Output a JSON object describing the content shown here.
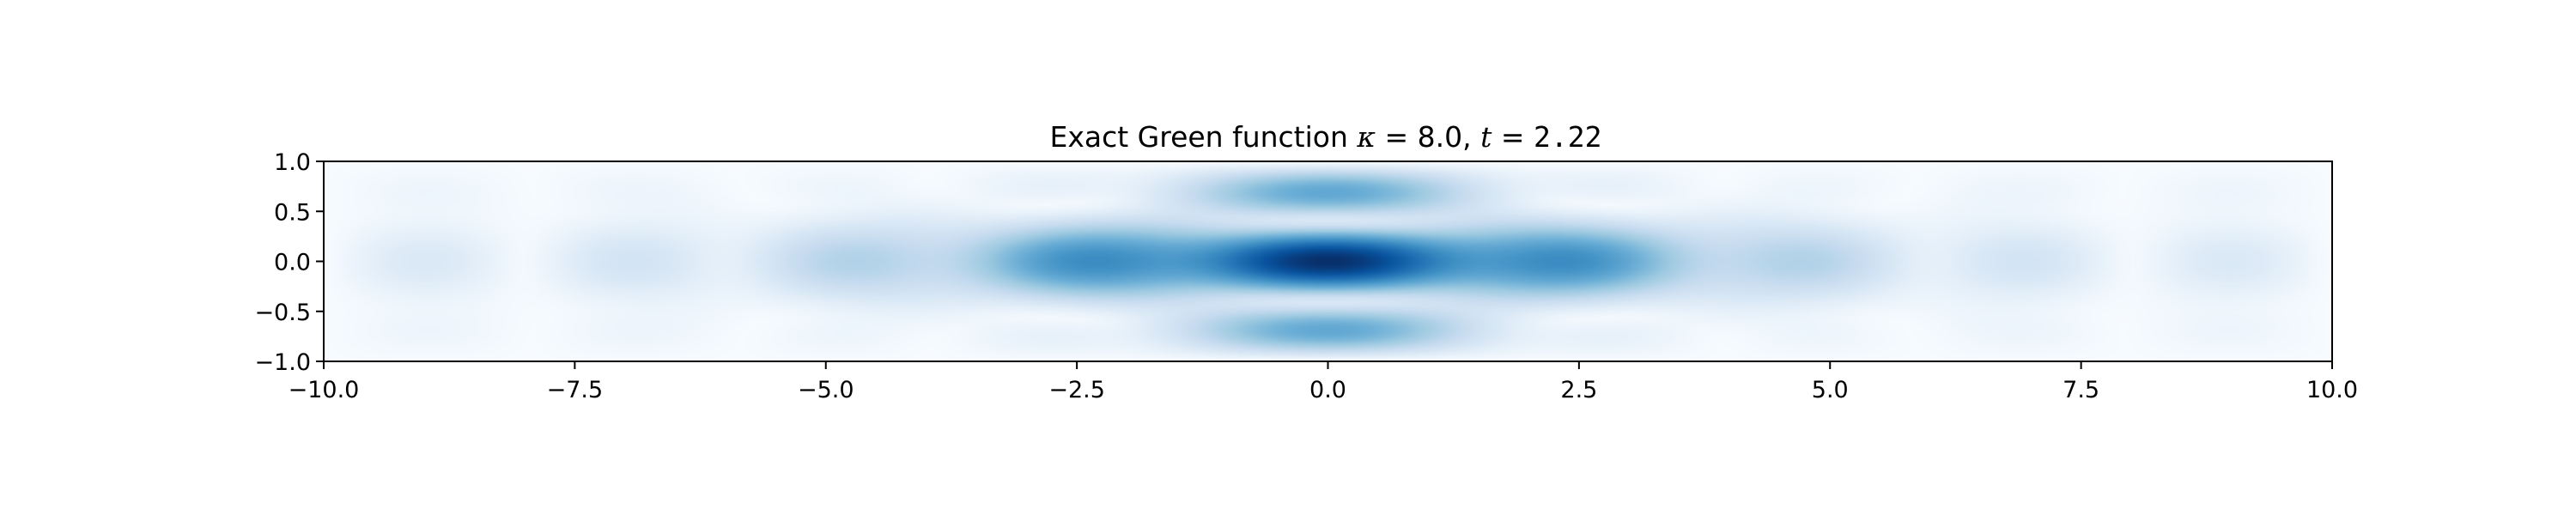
{
  "chart_data": {
    "type": "heatmap",
    "title": {
      "prefix": "Exact Green function ",
      "kappa_symbol": "κ",
      "kappa_eq": " = 8.0, ",
      "t_symbol": "t",
      "t_eq": " = ",
      "t_value": "2.22"
    },
    "xlabel": "",
    "ylabel": "",
    "xlim": [
      -10.0,
      10.0
    ],
    "ylim": [
      -1.0,
      1.0
    ],
    "x_ticks": [
      -10.0,
      -7.5,
      -5.0,
      -2.5,
      0.0,
      2.5,
      5.0,
      7.5,
      10.0
    ],
    "x_tick_labels": [
      "−10.0",
      "−7.5",
      "−5.0",
      "−2.5",
      "0.0",
      "2.5",
      "5.0",
      "7.5",
      "10.0"
    ],
    "y_ticks": [
      1.0,
      0.5,
      0.0,
      -0.5,
      -1.0
    ],
    "y_tick_labels": [
      "1.0",
      "0.5",
      "0.0",
      "−0.5",
      "−1.0"
    ],
    "colormap": "Blues",
    "colorbar": false,
    "grid": false,
    "kappa": 8.0,
    "t": 2.22
  }
}
